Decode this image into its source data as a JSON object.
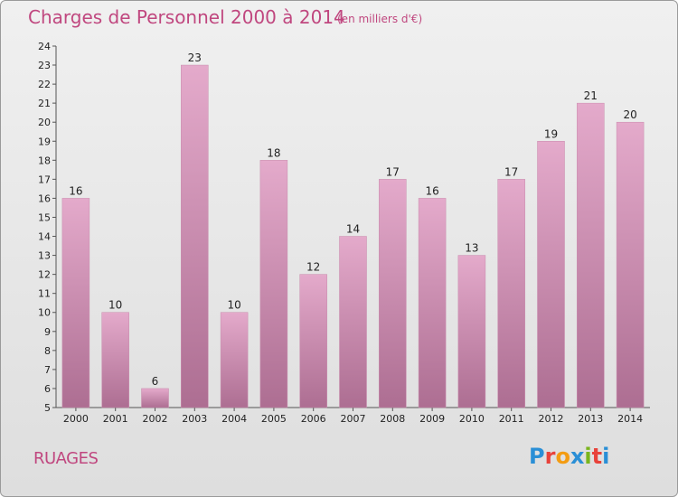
{
  "header": {
    "title": "Charges de Personnel 2000 à 2014",
    "subtitle": "(en milliers d'€)"
  },
  "footer": {
    "commune": "RUAGES",
    "logo_text": "Proxiti",
    "logo_colors": [
      "#2a8fd6",
      "#e8423a",
      "#f39c12",
      "#2a8fd6",
      "#7ab51d",
      "#e8423a",
      "#2a8fd6"
    ]
  },
  "colors": {
    "bar_top": "#e4aacb",
    "bar_bottom": "#ad6e92",
    "accent": "#c0477f"
  },
  "chart_data": {
    "type": "bar",
    "categories": [
      "2000",
      "2001",
      "2002",
      "2003",
      "2004",
      "2005",
      "2006",
      "2007",
      "2008",
      "2009",
      "2010",
      "2011",
      "2012",
      "2013",
      "2014"
    ],
    "values": [
      16,
      10,
      6,
      23,
      10,
      18,
      12,
      14,
      17,
      16,
      13,
      17,
      19,
      21,
      20
    ],
    "title": "Charges de Personnel 2000 à 2014",
    "subtitle": "(en milliers d'€)",
    "ylim": [
      5,
      24
    ],
    "yticks": [
      5,
      6,
      7,
      8,
      9,
      10,
      11,
      12,
      13,
      14,
      15,
      16,
      17,
      18,
      19,
      20,
      21,
      22,
      23,
      24
    ],
    "grid": false
  }
}
